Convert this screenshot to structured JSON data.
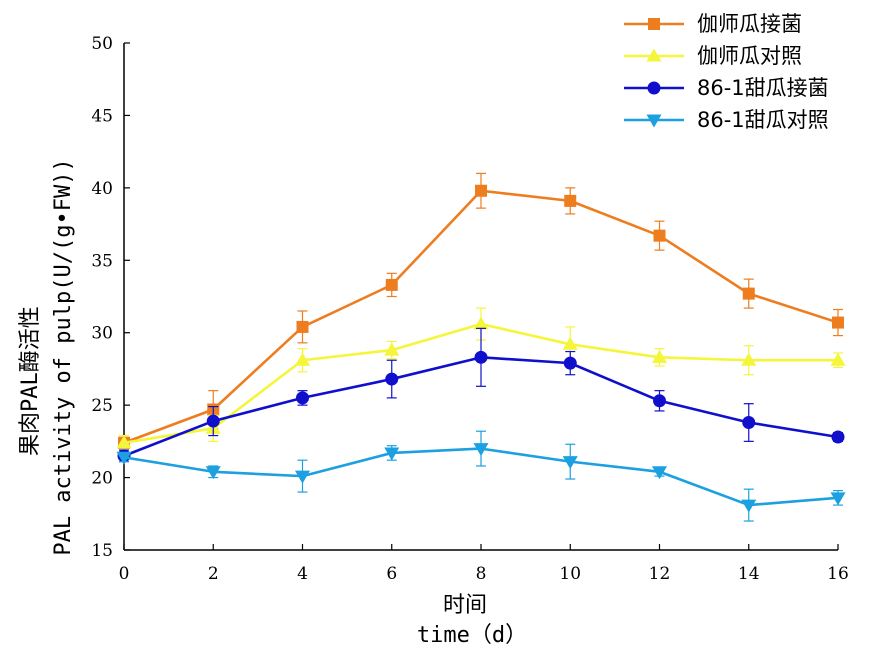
{
  "chart_data": {
    "type": "line",
    "xlabel": "时间",
    "xlabel2": "time（d）",
    "ylabel": "果肉PAL酶活性",
    "ylabel2": "PAL activity of pulp(U/(g•FW))",
    "xlim": [
      0,
      16
    ],
    "ylim": [
      15,
      50
    ],
    "x_ticks": [
      "0",
      "2",
      "4",
      "6",
      "8",
      "10",
      "12",
      "14",
      "16"
    ],
    "y_ticks": [
      "15",
      "20",
      "25",
      "30",
      "35",
      "40",
      "45",
      "50"
    ],
    "grid": false,
    "legend_position": "top-right",
    "x": [
      0,
      2,
      4,
      6,
      8,
      10,
      12,
      14,
      16
    ],
    "series": [
      {
        "name": "伽师瓜接菌",
        "color": "#ed7d1f",
        "marker": "square",
        "values": [
          22.4,
          24.7,
          30.4,
          33.3,
          39.8,
          39.1,
          36.7,
          32.7,
          30.7
        ],
        "errors": [
          0.5,
          1.3,
          1.1,
          0.8,
          1.2,
          0.9,
          1.0,
          1.0,
          0.9
        ]
      },
      {
        "name": "伽师瓜对照",
        "color": "#f5f53a",
        "marker": "triangle-up",
        "values": [
          22.4,
          23.4,
          28.1,
          28.8,
          30.6,
          29.2,
          28.3,
          28.1,
          28.1
        ],
        "errors": [
          0.5,
          0.9,
          0.8,
          0.6,
          1.1,
          1.2,
          0.6,
          1.0,
          0.5
        ]
      },
      {
        "name": "86-1甜瓜接菌",
        "color": "#1010cc",
        "marker": "circle",
        "values": [
          21.5,
          23.9,
          25.5,
          26.8,
          28.3,
          27.9,
          25.3,
          23.8,
          22.8
        ],
        "errors": [
          0.4,
          1.0,
          0.5,
          1.3,
          2.0,
          0.8,
          0.7,
          1.3,
          0.3
        ]
      },
      {
        "name": "86-1甜瓜对照",
        "color": "#1ca0e0",
        "marker": "triangle-down",
        "values": [
          21.4,
          20.4,
          20.1,
          21.7,
          22.0,
          21.1,
          20.4,
          18.1,
          18.6
        ],
        "errors": [
          0.3,
          0.4,
          1.1,
          0.5,
          1.2,
          1.2,
          0.3,
          1.1,
          0.5
        ]
      }
    ]
  }
}
